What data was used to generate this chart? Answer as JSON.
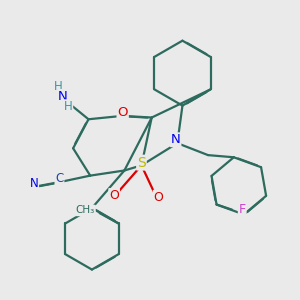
{
  "bg_color": "#eaeaea",
  "bond_color": "#2d6b5e",
  "bond_width": 1.6,
  "dbo": 0.012,
  "atom_colors": {
    "N": "#0000ee",
    "O": "#dd0000",
    "S": "#bbbb00",
    "F": "#cc44cc",
    "H": "#3399aa",
    "C": "#2244aa"
  }
}
